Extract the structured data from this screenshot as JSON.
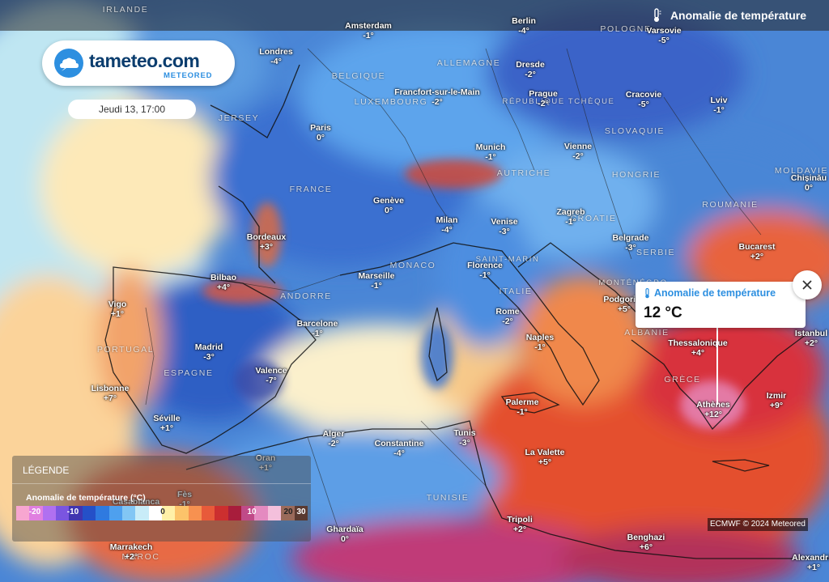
{
  "header": {
    "title": "Anomalie de température",
    "icon": "thermometer-icon"
  },
  "logo": {
    "name": "tameteo.com",
    "subtitle": "METEORED",
    "icon": "cloud-icon"
  },
  "date": "Jeudi 13, 17:00",
  "popup": {
    "title": "Anomalie de température",
    "value": "12 °C",
    "close_icon": "close-icon"
  },
  "legend": {
    "heading": "LÉGENDE",
    "subtitle": "Anomalie de température (°C)",
    "ticks": [
      "-20",
      "-10",
      "0",
      "10",
      "20",
      "30"
    ],
    "colors": [
      "#f7a6d0",
      "#e07fe0",
      "#b070f0",
      "#7a55e0",
      "#4035b0",
      "#2550c8",
      "#2f7ae0",
      "#4ea0ee",
      "#82c6f4",
      "#c8ecf8",
      "#ffffff",
      "#fff0a8",
      "#fcc36a",
      "#f79150",
      "#e85a3a",
      "#cc2f2f",
      "#a81d3c",
      "#c04a88",
      "#e48ac0",
      "#f4c0dc",
      "#9a6a5a",
      "#5a3a30"
    ]
  },
  "credit": "ECMWF © 2024 Meteored",
  "countries": [
    {
      "name": "Irlande",
      "text": "IRLANDE"
    },
    {
      "name": "Allemagne",
      "text": "ALLEMAGNE"
    },
    {
      "name": "Belgique",
      "text": "BELGIQUE"
    },
    {
      "name": "Luxembourg",
      "text": "LUXEMBOURG"
    },
    {
      "name": "Pologne",
      "text": "POLOGNE"
    },
    {
      "name": "Republique-tcheque",
      "text": "RÉPUBLIQUE TCHÈQUE"
    },
    {
      "name": "Slovaquie",
      "text": "SLOVAQUIE"
    },
    {
      "name": "Autriche",
      "text": "AUTRICHE"
    },
    {
      "name": "Hongrie",
      "text": "HONGRIE"
    },
    {
      "name": "Moldavie",
      "text": "MOLDAVIE"
    },
    {
      "name": "Roumanie",
      "text": "ROUMANIE"
    },
    {
      "name": "France",
      "text": "FRANCE"
    },
    {
      "name": "Jersey",
      "text": "JERSEY"
    },
    {
      "name": "Croatie",
      "text": "CROATIE"
    },
    {
      "name": "Serbie",
      "text": "SERBIE"
    },
    {
      "name": "Monaco",
      "text": "MONACO"
    },
    {
      "name": "Saint-marin",
      "text": "SAINT-MARIN"
    },
    {
      "name": "Andorre",
      "text": "ANDORRE"
    },
    {
      "name": "Italie",
      "text": "ITALIE"
    },
    {
      "name": "Montenegro",
      "text": "MONTÉNÉGRO"
    },
    {
      "name": "Albanie",
      "text": "ALBANIE"
    },
    {
      "name": "Grece",
      "text": "GRÈCE"
    },
    {
      "name": "Portugal",
      "text": "PORTUGAL"
    },
    {
      "name": "Espagne",
      "text": "ESPAGNE"
    },
    {
      "name": "Tunisie",
      "text": "TUNISIE"
    },
    {
      "name": "Maroc",
      "text": "MAROC"
    }
  ],
  "cities": [
    {
      "name": "Londres",
      "value": "-4°"
    },
    {
      "name": "Amsterdam",
      "value": "-1°"
    },
    {
      "name": "Berlin",
      "value": "-4°"
    },
    {
      "name": "Varsovie",
      "value": "-5°"
    },
    {
      "name": "Dresde",
      "value": "-2°"
    },
    {
      "name": "Francfort-sur-le-Main",
      "value": "-2°"
    },
    {
      "name": "Prague",
      "value": "-2°"
    },
    {
      "name": "Cracovie",
      "value": "-5°"
    },
    {
      "name": "Lviv",
      "value": "-1°"
    },
    {
      "name": "Paris",
      "value": "0°"
    },
    {
      "name": "Munich",
      "value": "-1°"
    },
    {
      "name": "Vienne",
      "value": "-2°"
    },
    {
      "name": "Chișinău",
      "value": "0°"
    },
    {
      "name": "Genève",
      "value": "0°"
    },
    {
      "name": "Zagreb",
      "value": "-1°"
    },
    {
      "name": "Milan",
      "value": "-4°"
    },
    {
      "name": "Venise",
      "value": "-3°"
    },
    {
      "name": "Bordeaux",
      "value": "+3°"
    },
    {
      "name": "Belgrade",
      "value": "-3°"
    },
    {
      "name": "Bucarest",
      "value": "+2°"
    },
    {
      "name": "Bilbao",
      "value": "+4°"
    },
    {
      "name": "Marseille",
      "value": "-1°"
    },
    {
      "name": "Florence",
      "value": "-1°"
    },
    {
      "name": "Podgorica",
      "value": "+5°"
    },
    {
      "name": "Vigo",
      "value": "+1°"
    },
    {
      "name": "Rome",
      "value": "-2°"
    },
    {
      "name": "Barcelone",
      "value": "-1°"
    },
    {
      "name": "Istanbul",
      "value": "+2°"
    },
    {
      "name": "Naples",
      "value": "-1°"
    },
    {
      "name": "Thessalonique",
      "value": "+4°"
    },
    {
      "name": "Madrid",
      "value": "-3°"
    },
    {
      "name": "Valence",
      "value": "-7°"
    },
    {
      "name": "Lisbonne",
      "value": "+7°"
    },
    {
      "name": "Athènes",
      "value": "+12°"
    },
    {
      "name": "Izmir",
      "value": "+9°"
    },
    {
      "name": "Palerme",
      "value": "-1°"
    },
    {
      "name": "Séville",
      "value": "+1°"
    },
    {
      "name": "Alger",
      "value": "-2°"
    },
    {
      "name": "Constantine",
      "value": "-4°"
    },
    {
      "name": "Tunis",
      "value": "-3°"
    },
    {
      "name": "La Valette",
      "value": "+5°"
    },
    {
      "name": "Oran",
      "value": "+1°"
    },
    {
      "name": "Fès",
      "value": "-1°"
    },
    {
      "name": "Casablanca",
      "value": ""
    },
    {
      "name": "Tripoli",
      "value": "+2°"
    },
    {
      "name": "Ghardaïa",
      "value": "0°"
    },
    {
      "name": "Benghazi",
      "value": "+6°"
    },
    {
      "name": "Marrakech",
      "value": "+2°"
    },
    {
      "name": "Alexandrie",
      "value": "+1°"
    }
  ]
}
